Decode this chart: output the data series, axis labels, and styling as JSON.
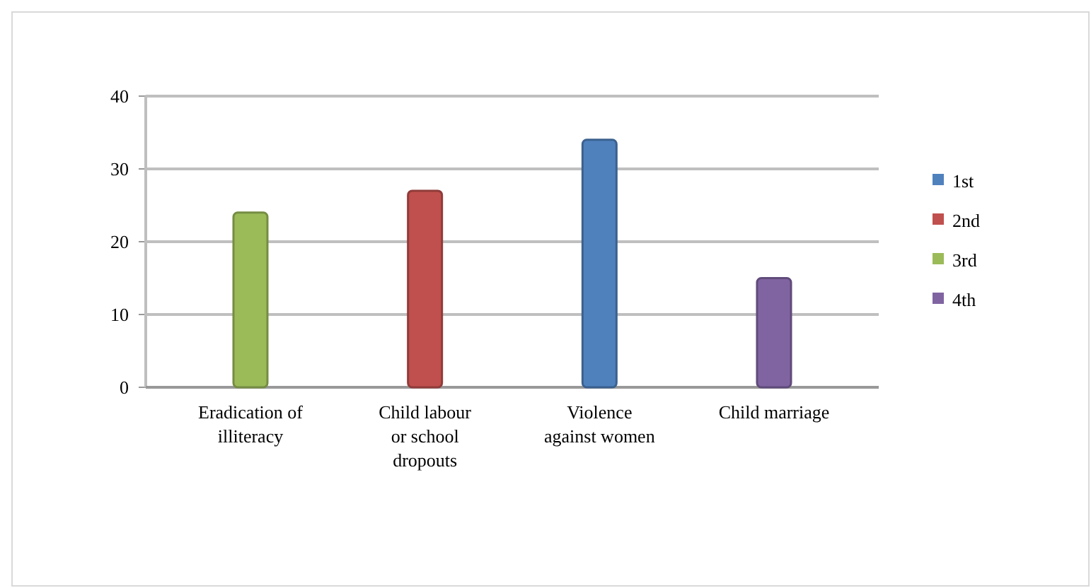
{
  "chart_data": {
    "type": "bar",
    "categories": [
      "Eradication of illiteracy",
      "Child labour or school dropouts",
      "Violence against women",
      "Child marriage"
    ],
    "series": [
      {
        "name": "1st",
        "color": "#4f81bd",
        "values": [
          null,
          null,
          34,
          null
        ]
      },
      {
        "name": "2nd",
        "color": "#c0504d",
        "values": [
          null,
          27,
          null,
          null
        ]
      },
      {
        "name": "3rd",
        "color": "#9bbb59",
        "values": [
          24,
          null,
          null,
          null
        ]
      },
      {
        "name": "4th",
        "color": "#8064a2",
        "values": [
          null,
          null,
          null,
          15
        ]
      }
    ],
    "ylim": [
      0,
      40
    ],
    "yticks": [
      0,
      10,
      20,
      30,
      40
    ],
    "grid": "y",
    "legend": "right"
  }
}
